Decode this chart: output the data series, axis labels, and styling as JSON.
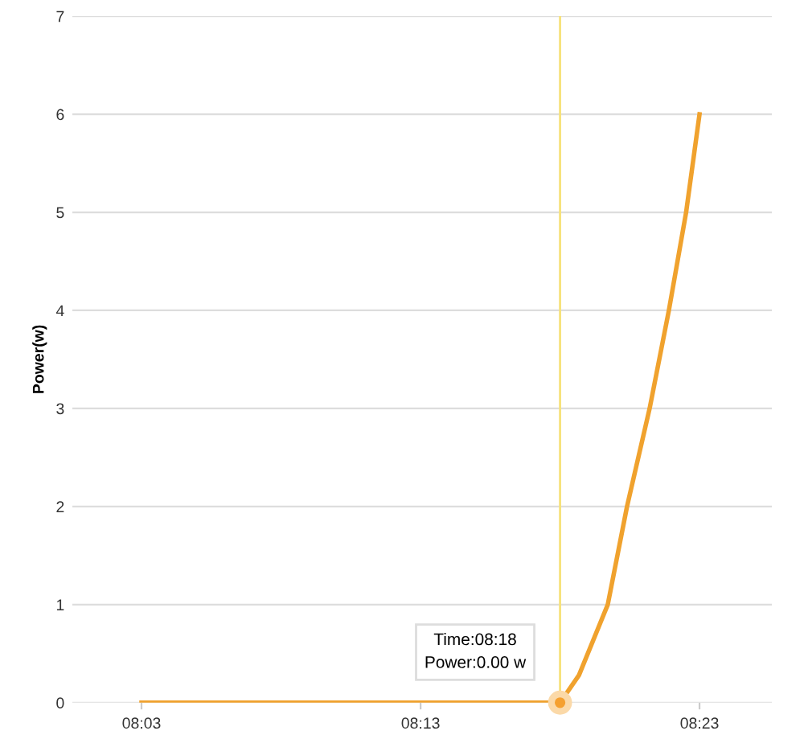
{
  "chart_data": {
    "type": "line",
    "ylabel": "Power(w)",
    "series": [
      {
        "color": "#f0a22e",
        "x": [
          8.05,
          8.3,
          8.3113,
          8.3285,
          8.34,
          8.3535,
          8.365,
          8.3753,
          8.3833
        ],
        "values": [
          0,
          0,
          0.28,
          1,
          2,
          3,
          4,
          5,
          6
        ]
      },
      {
        "type": "scatter",
        "marker": "circle",
        "color": "#f5a030",
        "x": [
          8.3
        ],
        "values": [
          0
        ]
      }
    ],
    "xlim": [
      8.0087,
      8.4265
    ],
    "xticks": [
      {
        "value": 8.05,
        "label": "08:03"
      },
      {
        "value": 8.2167,
        "label": "08:13"
      },
      {
        "value": 8.3833,
        "label": "08:23"
      }
    ],
    "ylim": [
      0,
      7
    ],
    "yticks": [
      0,
      1,
      2,
      3,
      4,
      5,
      6,
      7
    ],
    "grid": "y",
    "marker": "none",
    "line_style": "solid",
    "ref_lines": [
      {
        "axis": "x",
        "value": 8.3,
        "color": "#f7e27a"
      }
    ],
    "annotations": [
      {
        "text": "Time:08:18\nPower:0.00 w",
        "x": 8.3,
        "y": 0
      }
    ]
  }
}
